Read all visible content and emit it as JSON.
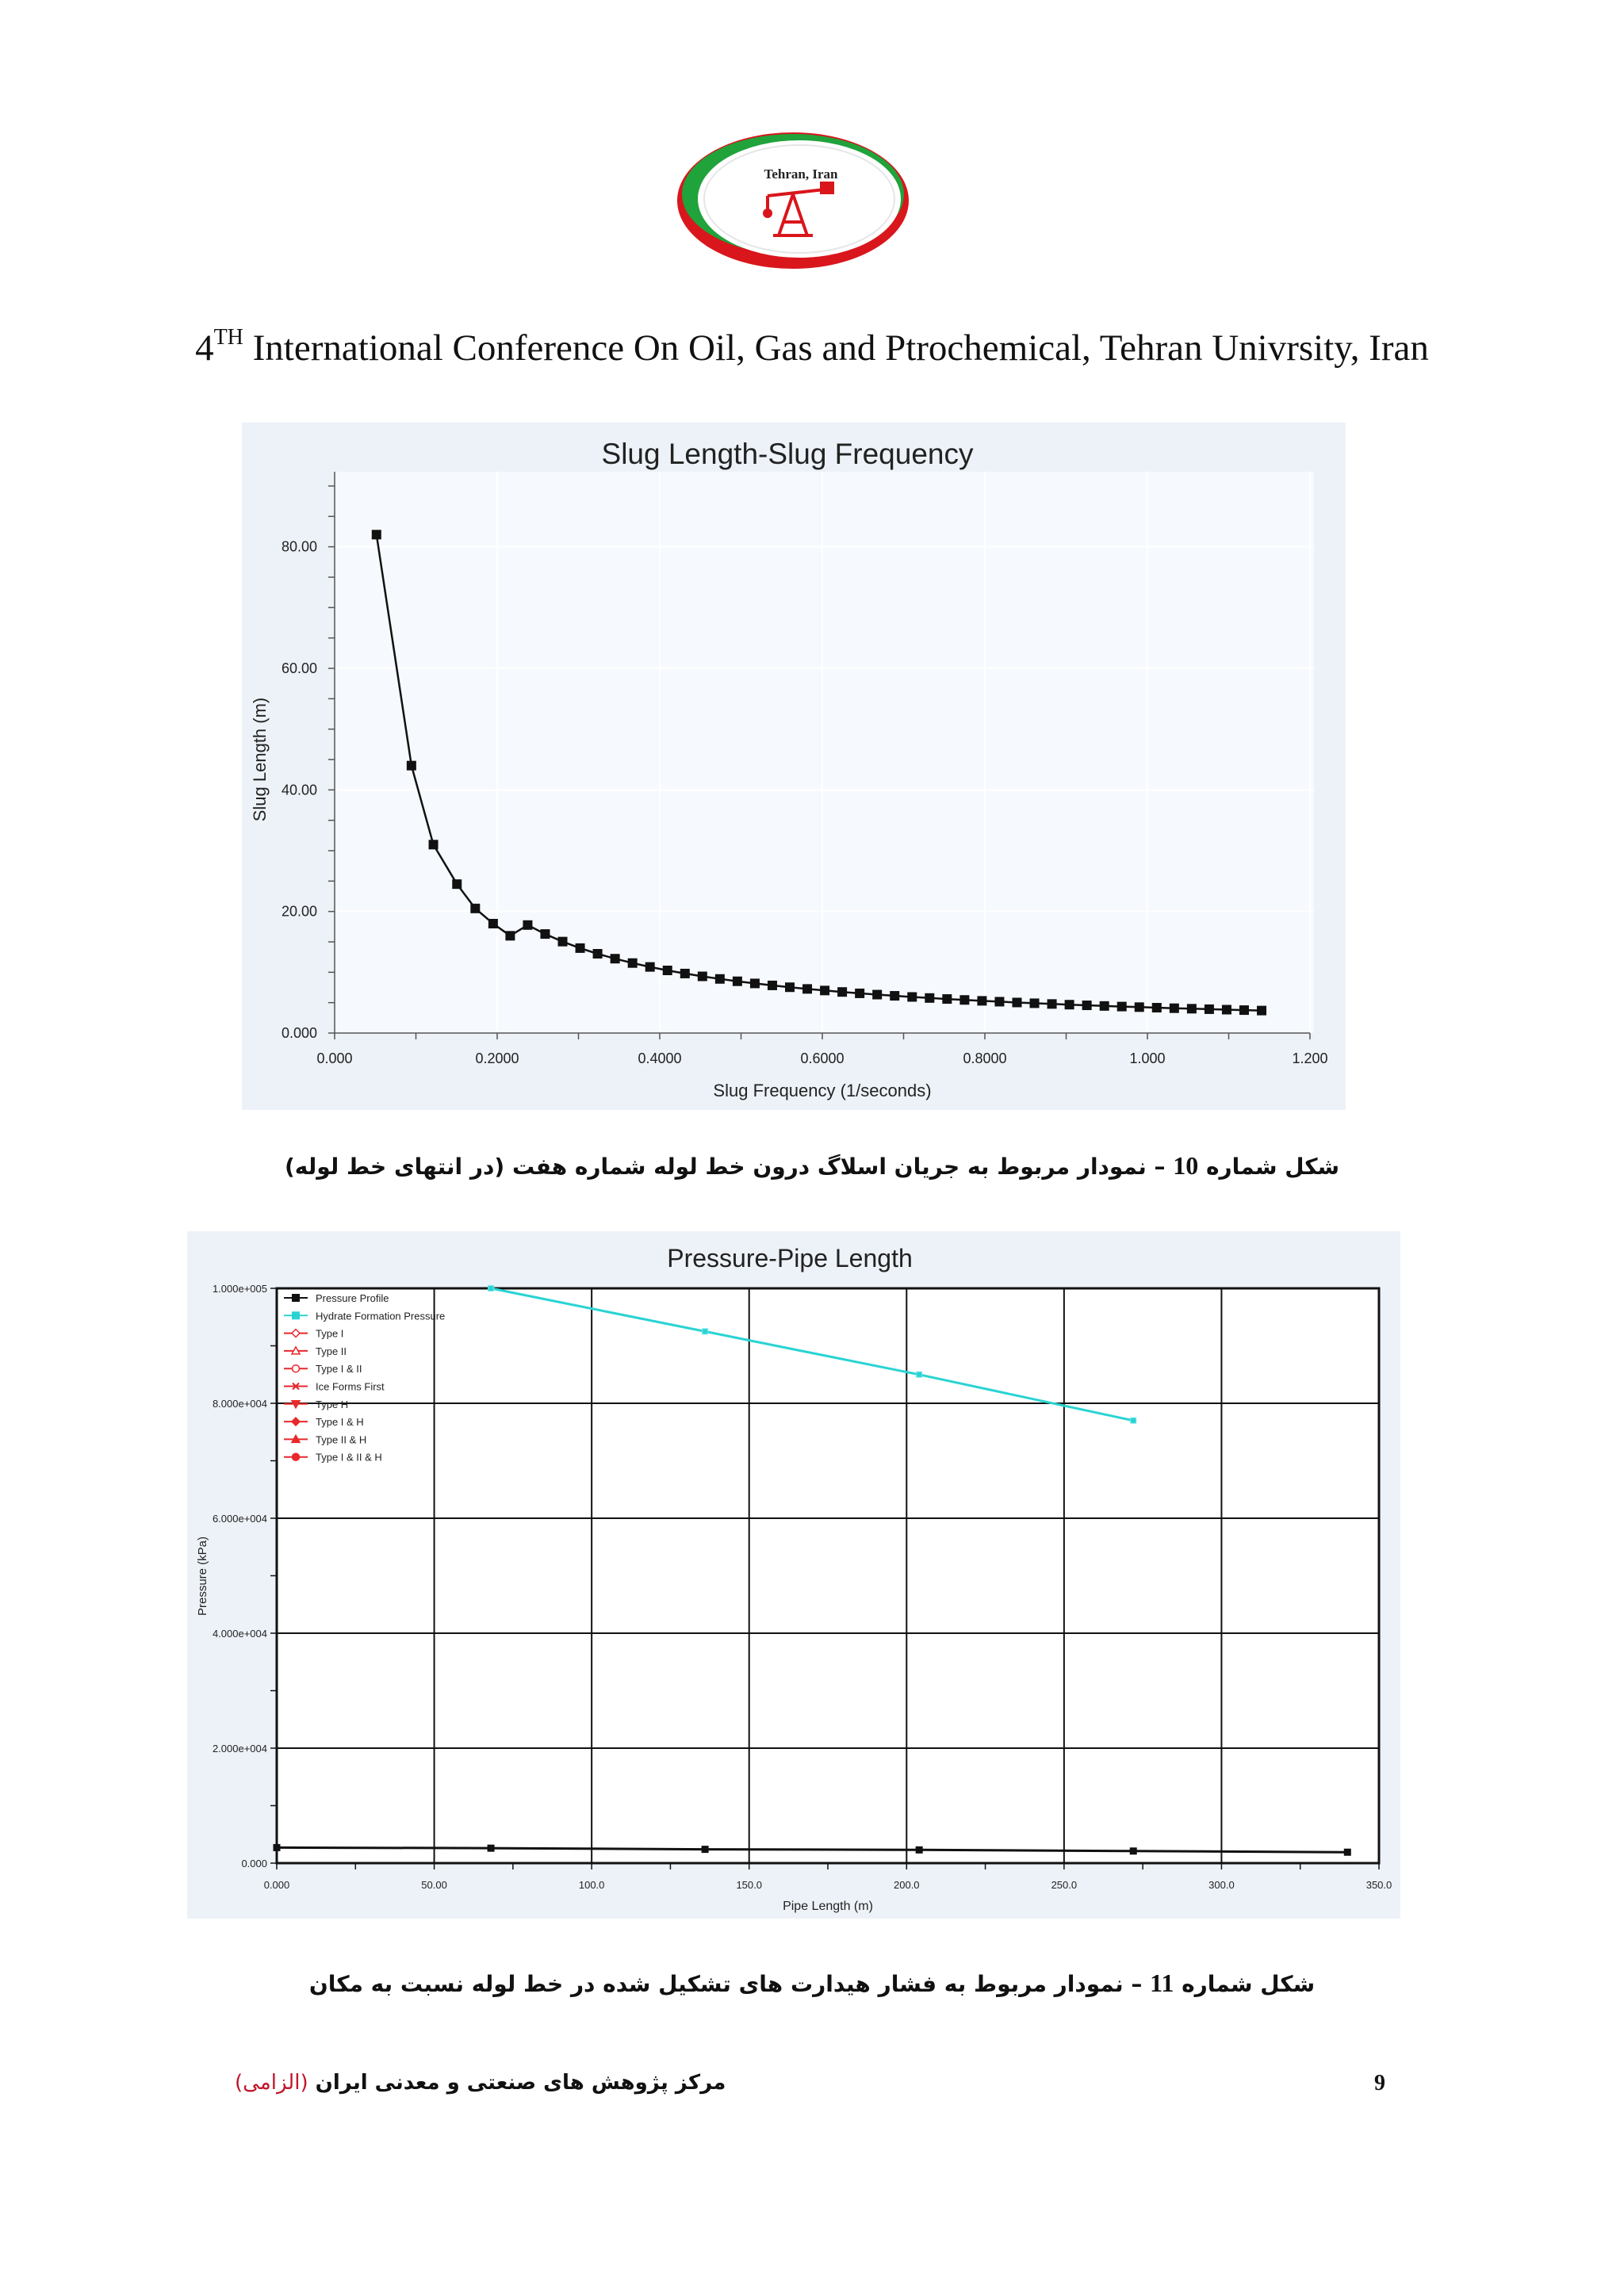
{
  "header": {
    "logo_text": "Tehran, Iran",
    "conference_ordinal": "4",
    "conference_sup": "TH",
    "conference_title": " International Conference On Oil, Gas and Ptrochemical, Tehran Univrsity, Iran"
  },
  "captions": {
    "fig10": {
      "prefix": "شکل شماره",
      "number": "10",
      "text": "– نمودار مربوط به جریان اسلاگ درون خط لوله شماره هفت (در انتهای خط لوله)"
    },
    "fig11": {
      "prefix": "شکل شماره",
      "number": "11",
      "text": "– نمودار مربوط به فشار هیدارت های تشکیل شده در خط لوله نسبت به مکان"
    }
  },
  "footer": {
    "organization": "مرکز پژوهش های صنعتی و معدنی ایران",
    "mandatory": "(الزامی)",
    "page_number": "9"
  },
  "colors": {
    "chart_bg": "#edf2f8",
    "plot_bg": "#f6f9fd",
    "hydrate_line": "#2ad3d3",
    "pressure_line": "#111111",
    "legend_red": "#e8282b"
  },
  "chart_data": [
    {
      "type": "line",
      "title": "Slug Length-Slug Frequency",
      "xlabel": "Slug Frequency (1/seconds)",
      "ylabel": "Slug Length (m)",
      "xlim": [
        0,
        1.2
      ],
      "ylim": [
        0,
        90
      ],
      "x_ticks": [
        0,
        0.2,
        0.4,
        0.6,
        0.8,
        1.0,
        1.2
      ],
      "x_tick_labels": [
        "0.000",
        "0.2000",
        "0.4000",
        "0.6000",
        "0.8000",
        "1.000",
        "1.200"
      ],
      "y_ticks": [
        0,
        20,
        40,
        60,
        80
      ],
      "y_tick_labels": [
        "0.000",
        "20.00",
        "40.00",
        "60.00",
        "80.00"
      ],
      "grid": true,
      "series": [
        {
          "name": "Slug Length",
          "marker": "square",
          "relation": "y = c / x",
          "constant_c": 4.22,
          "x_start": 0.0515,
          "x_step": 0.0215,
          "n_points": 52,
          "sample_points": [
            [
              0.0515,
              82.0
            ],
            [
              0.0945,
              44.0
            ],
            [
              0.1215,
              31.0
            ],
            [
              0.1505,
              24.5
            ],
            [
              0.173,
              20.5
            ],
            [
              0.195,
              18.0
            ],
            [
              0.216,
              16.0
            ]
          ]
        }
      ]
    },
    {
      "type": "line",
      "title": "Pressure-Pipe Length",
      "xlabel": "Pipe Length (m)",
      "ylabel": "Pressure (kPa)",
      "xlim": [
        0,
        350
      ],
      "ylim": [
        0,
        100000
      ],
      "x_ticks": [
        0,
        50,
        100,
        150,
        200,
        250,
        300,
        350
      ],
      "x_tick_labels": [
        "0.000",
        "50.00",
        "100.0",
        "150.0",
        "200.0",
        "250.0",
        "300.0",
        "350.0"
      ],
      "y_ticks": [
        0,
        20000,
        40000,
        60000,
        80000,
        100000
      ],
      "y_tick_labels": [
        "0.000",
        "2.000e+004",
        "4.000e+004",
        "6.000e+004",
        "8.000e+004",
        "1.000e+005"
      ],
      "grid": true,
      "legend_position": "top-left",
      "legend": [
        {
          "label": "Pressure Profile",
          "marker": "square",
          "color": "#111111"
        },
        {
          "label": "Hydrate Formation Pressure",
          "marker": "square",
          "color": "#2ad3d3"
        },
        {
          "label": "Type I",
          "marker": "diamond",
          "color": "#e8282b"
        },
        {
          "label": "Type II",
          "marker": "triangle",
          "color": "#e8282b"
        },
        {
          "label": "Type I & II",
          "marker": "circle",
          "color": "#e8282b"
        },
        {
          "label": "Ice Forms First",
          "marker": "cross",
          "color": "#e8282b"
        },
        {
          "label": "Type H",
          "marker": "triangle-down",
          "color": "#e8282b"
        },
        {
          "label": "Type I & H",
          "marker": "diamond-filled",
          "color": "#e8282b"
        },
        {
          "label": "Type II & H",
          "marker": "triangle-filled",
          "color": "#e8282b"
        },
        {
          "label": "Type I & II & H",
          "marker": "circle-filled",
          "color": "#e8282b"
        }
      ],
      "series": [
        {
          "name": "Pressure Profile",
          "points": [
            [
              0,
              2700
            ],
            [
              68,
              2600
            ],
            [
              136,
              2400
            ],
            [
              204,
              2300
            ],
            [
              272,
              2100
            ],
            [
              340,
              1900
            ]
          ]
        },
        {
          "name": "Hydrate Formation Pressure",
          "points": [
            [
              68,
              100000
            ],
            [
              136,
              92500
            ],
            [
              204,
              85000
            ],
            [
              272,
              77000
            ]
          ]
        }
      ]
    }
  ]
}
